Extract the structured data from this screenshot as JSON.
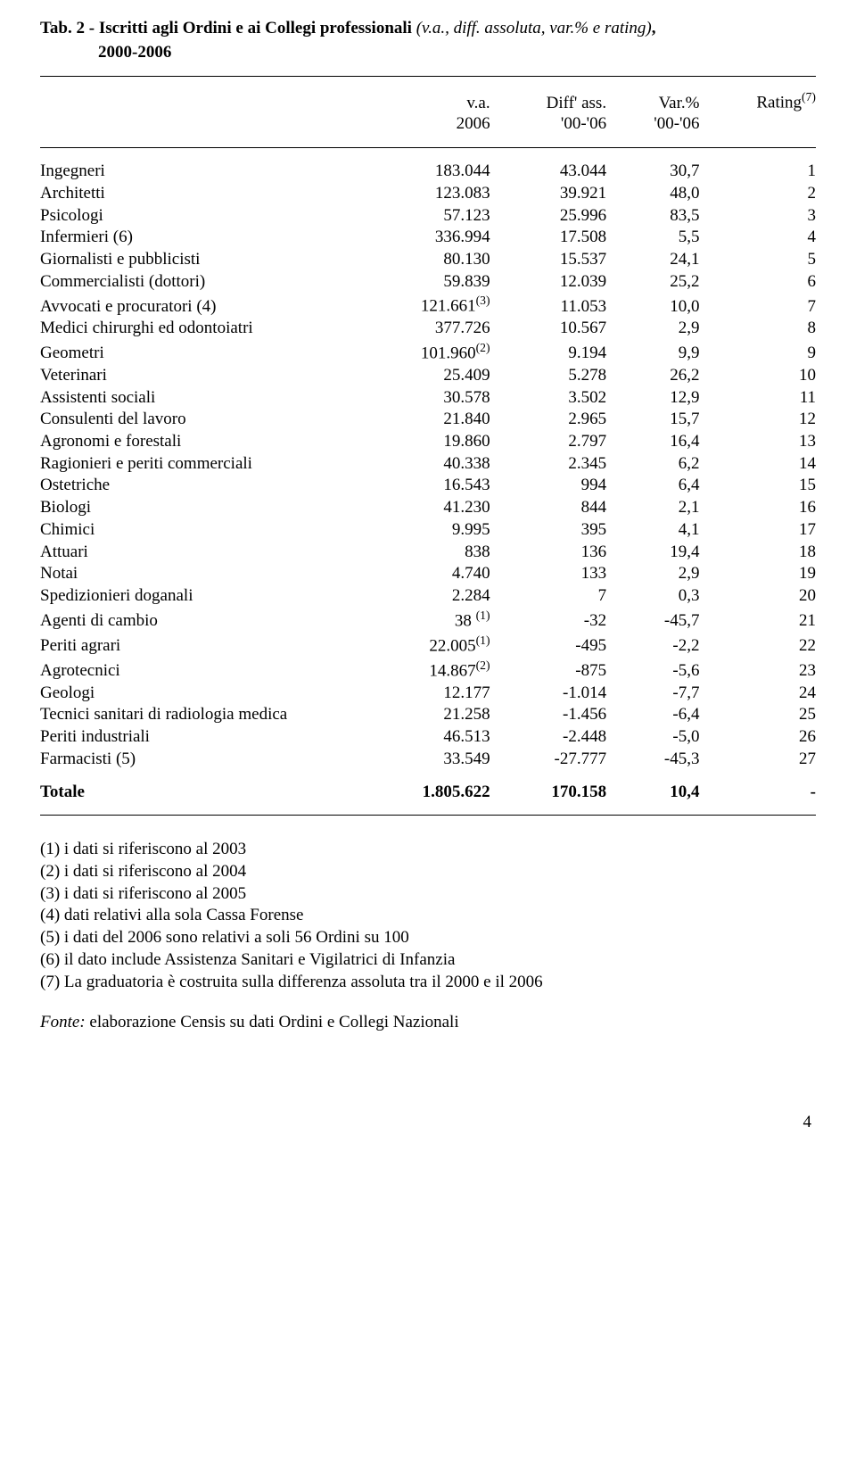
{
  "title": {
    "prefix": "Tab. 2 - Iscritti agli Ordini e ai Collegi professionali ",
    "italic": "(v.a., diff. assoluta, var.% e rating)",
    "suffix": ",",
    "years": "2000-2006"
  },
  "headers": {
    "va1": "v.a.",
    "va2": "2006",
    "diff1": "Diff' ass.",
    "diff2": "'00-'06",
    "var1": "Var.%",
    "var2": "'00-'06",
    "rating": "Rating",
    "rating_note": "(7)"
  },
  "rows": [
    {
      "label": "Ingegneri",
      "note": "",
      "va": "183.044",
      "diff": "43.044",
      "var": "30,7",
      "rating": "1"
    },
    {
      "label": "Architetti",
      "note": "",
      "va": "123.083",
      "diff": "39.921",
      "var": "48,0",
      "rating": "2"
    },
    {
      "label": "Psicologi",
      "note": "",
      "va": "57.123",
      "diff": "25.996",
      "var": "83,5",
      "rating": "3"
    },
    {
      "label": "Infermieri (6)",
      "note": "",
      "va": "336.994",
      "diff": "17.508",
      "var": "5,5",
      "rating": "4"
    },
    {
      "label": "Giornalisti e pubblicisti",
      "note": "",
      "va": "80.130",
      "diff": "15.537",
      "var": "24,1",
      "rating": "5"
    },
    {
      "label": "Commercialisti (dottori)",
      "note": "",
      "va": "59.839",
      "diff": "12.039",
      "var": "25,2",
      "rating": "6"
    },
    {
      "label": "Avvocati e procuratori (4)",
      "note": "",
      "va": "121.661",
      "va_note": "(3)",
      "diff": "11.053",
      "var": "10,0",
      "rating": "7"
    },
    {
      "label": "Medici chirurghi ed odontoiatri",
      "note": "",
      "va": "377.726",
      "diff": "10.567",
      "var": "2,9",
      "rating": "8"
    },
    {
      "label": "Geometri",
      "note": "",
      "va": "101.960",
      "va_note": "(2)",
      "diff": "9.194",
      "var": "9,9",
      "rating": "9"
    },
    {
      "label": "Veterinari",
      "note": "",
      "va": "25.409",
      "diff": "5.278",
      "var": "26,2",
      "rating": "10"
    },
    {
      "label": "Assistenti sociali",
      "note": "",
      "va": "30.578",
      "diff": "3.502",
      "var": "12,9",
      "rating": "11"
    },
    {
      "label": "Consulenti del lavoro",
      "note": "",
      "va": "21.840",
      "diff": "2.965",
      "var": "15,7",
      "rating": "12"
    },
    {
      "label": "Agronomi e forestali",
      "note": "",
      "va": "19.860",
      "diff": "2.797",
      "var": "16,4",
      "rating": "13"
    },
    {
      "label": "Ragionieri e periti commerciali",
      "note": "",
      "va": "40.338",
      "diff": "2.345",
      "var": "6,2",
      "rating": "14"
    },
    {
      "label": "Ostetriche",
      "note": "",
      "va": "16.543",
      "diff": "994",
      "var": "6,4",
      "rating": "15"
    },
    {
      "label": "Biologi",
      "note": "",
      "va": "41.230",
      "diff": "844",
      "var": "2,1",
      "rating": "16"
    },
    {
      "label": "Chimici",
      "note": "",
      "va": "9.995",
      "diff": "395",
      "var": "4,1",
      "rating": "17"
    },
    {
      "label": "Attuari",
      "note": "",
      "va": "838",
      "diff": "136",
      "var": "19,4",
      "rating": "18"
    },
    {
      "label": "Notai",
      "note": "",
      "va": "4.740",
      "diff": "133",
      "var": "2,9",
      "rating": "19"
    },
    {
      "label": "Spedizionieri doganali",
      "note": "",
      "va": "2.284",
      "diff": "7",
      "var": "0,3",
      "rating": "20"
    },
    {
      "label": "Agenti di cambio",
      "note": "",
      "va": "38 ",
      "va_note": "(1)",
      "diff": "-32",
      "var": "-45,7",
      "rating": "21"
    },
    {
      "label": "Periti agrari",
      "note": "",
      "va": "22.005",
      "va_note": "(1)",
      "diff": "-495",
      "var": "-2,2",
      "rating": "22"
    },
    {
      "label": "Agrotecnici",
      "note": "",
      "va": "14.867",
      "va_note": "(2)",
      "diff": "-875",
      "var": "-5,6",
      "rating": "23"
    },
    {
      "label": "Geologi",
      "note": "",
      "va": "12.177",
      "diff": "-1.014",
      "var": "-7,7",
      "rating": "24"
    },
    {
      "label": "Tecnici sanitari di radiologia medica",
      "note": "",
      "va": "21.258",
      "diff": "-1.456",
      "var": "-6,4",
      "rating": "25"
    },
    {
      "label": "Periti industriali",
      "note": "",
      "va": "46.513",
      "diff": "-2.448",
      "var": "-5,0",
      "rating": "26"
    },
    {
      "label": "Farmacisti (5)",
      "note": "",
      "va": "33.549",
      "diff": "-27.777",
      "var": "-45,3",
      "rating": "27"
    }
  ],
  "total": {
    "label": "Totale",
    "va": "1.805.622",
    "diff": "170.158",
    "var": "10,4",
    "rating": "-"
  },
  "footnotes": [
    "(1) i dati si riferiscono al 2003",
    "(2) i dati si riferiscono al 2004",
    "(3) i dati si riferiscono al 2005",
    "(4) dati relativi alla sola Cassa Forense",
    "(5) i dati del 2006 sono relativi a soli 56 Ordini su 100",
    "(6) il dato include Assistenza Sanitari e Vigilatrici di Infanzia",
    "(7) La graduatoria è costruita sulla differenza assoluta tra il 2000 e il 2006"
  ],
  "source": {
    "label": "Fonte: ",
    "text": "elaborazione Censis su dati Ordini e Collegi Nazionali"
  },
  "page_number": "4"
}
